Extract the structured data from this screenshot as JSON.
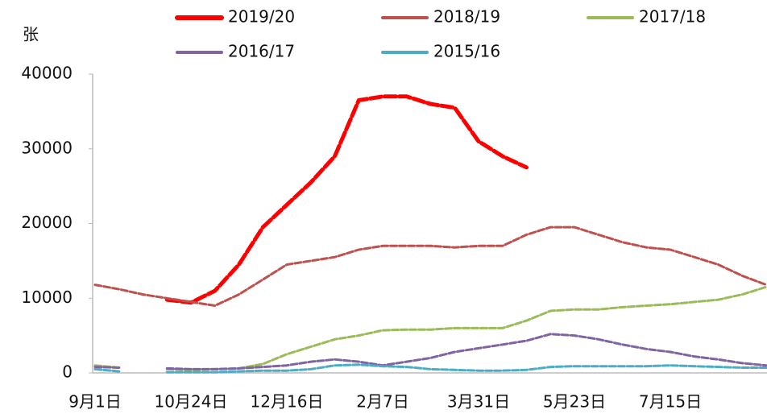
{
  "chart_data": {
    "type": "line",
    "y_label": "张",
    "categories": [
      "9月1日",
      null,
      null,
      null,
      "10月24日",
      null,
      null,
      null,
      "12月16日",
      null,
      null,
      null,
      "2月7日",
      null,
      null,
      null,
      "3月31日",
      null,
      null,
      null,
      "5月23日",
      null,
      null,
      null,
      "7月15日",
      null,
      null,
      null,
      null
    ],
    "series": [
      {
        "name": "2019/20",
        "color": "#ff0000",
        "line_width": 5,
        "values": [
          null,
          null,
          null,
          9800,
          9400,
          11000,
          14500,
          19500,
          22500,
          25500,
          29000,
          36500,
          37000,
          37000,
          36000,
          35500,
          31000,
          29000,
          27500,
          null,
          null,
          null,
          null,
          null,
          null,
          null,
          null,
          null,
          null
        ]
      },
      {
        "name": "2018/19",
        "color": "#c0504d",
        "line_width": 3,
        "values": [
          11800,
          11200,
          10500,
          10000,
          9500,
          9000,
          10500,
          12500,
          14500,
          15000,
          15500,
          16500,
          17000,
          17000,
          17000,
          16800,
          17000,
          17000,
          18500,
          19500,
          19500,
          18500,
          17500,
          16800,
          16500,
          15500,
          14500,
          13000,
          11800
        ]
      },
      {
        "name": "2017/18",
        "color": "#9bbb59",
        "line_width": 3,
        "values": [
          1000,
          700,
          null,
          500,
          400,
          500,
          600,
          1200,
          2500,
          3500,
          4500,
          5000,
          5700,
          5800,
          5800,
          6000,
          6000,
          6000,
          7000,
          8300,
          8500,
          8500,
          8800,
          9000,
          9200,
          9500,
          9800,
          10500,
          11500
        ]
      },
      {
        "name": "2016/17",
        "color": "#8064a2",
        "line_width": 3,
        "values": [
          800,
          700,
          null,
          600,
          500,
          500,
          600,
          800,
          1000,
          1500,
          1800,
          1500,
          1000,
          1500,
          2000,
          2800,
          3300,
          3800,
          4300,
          5200,
          5000,
          4500,
          3800,
          3200,
          2800,
          2200,
          1800,
          1300,
          1000
        ]
      },
      {
        "name": "2015/16",
        "color": "#4bacc6",
        "line_width": 3,
        "values": [
          500,
          200,
          null,
          100,
          100,
          100,
          200,
          300,
          300,
          500,
          1000,
          1100,
          900,
          800,
          500,
          400,
          300,
          300,
          400,
          800,
          900,
          900,
          900,
          900,
          1000,
          900,
          800,
          700,
          700
        ]
      }
    ],
    "ylim": [
      0,
      40000
    ],
    "yticks": [
      0,
      10000,
      20000,
      30000,
      40000
    ],
    "grid": false,
    "legend": "top"
  }
}
